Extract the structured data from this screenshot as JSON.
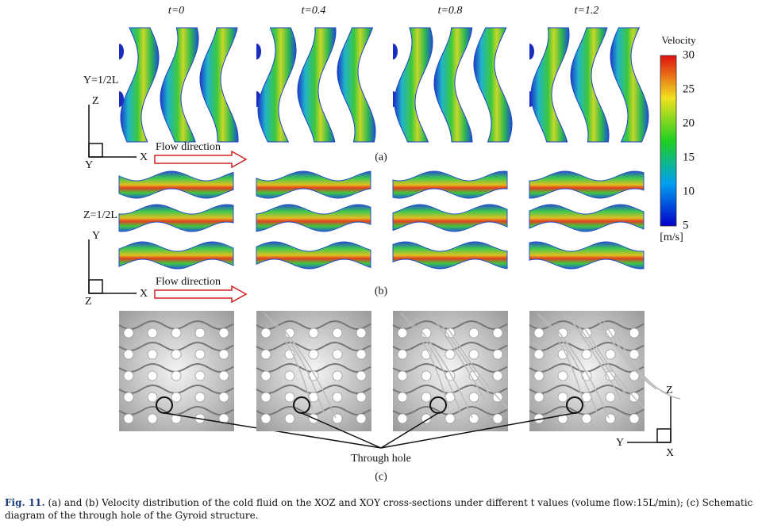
{
  "time_labels": [
    "t=0",
    "t=0.4",
    "t=0.8",
    "t=1.2"
  ],
  "panels": {
    "a": {
      "label": "(a)",
      "section": "Y=1/2L",
      "axes": {
        "up": "Z",
        "right": "X",
        "origin": "Y"
      },
      "flow": "Flow direction"
    },
    "b": {
      "label": "(b)",
      "section": "Z=1/2L",
      "axes": {
        "up": "Y",
        "right": "X",
        "origin": "Z"
      },
      "flow": "Flow direction"
    },
    "c": {
      "label": "(c)",
      "annotation": "Through hole",
      "axes": {
        "up": "Z",
        "left": "Y",
        "down": "X"
      }
    }
  },
  "colorbar": {
    "title": "Velocity",
    "ticks": [
      30,
      25,
      20,
      15,
      10,
      5
    ],
    "unit": "[m/s]"
  },
  "caption": {
    "label": "Fig. 11.",
    "text": "(a) and (b) Velocity distribution of the cold fluid on the XOZ and XOY cross-sections under different t values (volume flow:15L/min); (c) Schematic diagram of the through hole of the Gyroid structure."
  }
}
